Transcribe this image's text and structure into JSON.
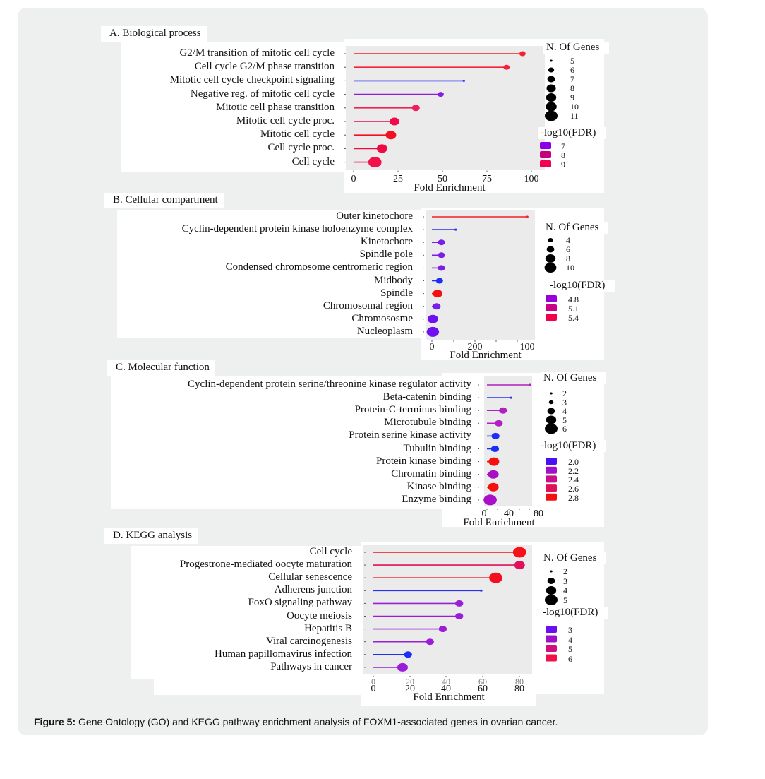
{
  "caption": {
    "label": "Figure 5:",
    "text": " Gene Ontology (GO) and KEGG pathway enrichment analysis of FOXM1-associated genes in ovarian cancer."
  },
  "chart_data": [
    {
      "type": "lollipop",
      "title": "A. Biological process",
      "xlabel": "Fold Enrichment",
      "xlim": [
        0,
        100
      ],
      "xticks": [
        "0",
        "25",
        "50",
        "75",
        "100"
      ],
      "size_legend_title": "N. Of Genes",
      "size_legend": [
        "5",
        "6",
        "7",
        "8",
        "9",
        "10",
        "11"
      ],
      "color_legend_title": "-log10(FDR)",
      "color_legend": [
        {
          "label": "7",
          "color": "#8a00e6"
        },
        {
          "label": "8",
          "color": "#c4007f"
        },
        {
          "label": "9",
          "color": "#f0004d"
        }
      ],
      "categories": [
        "G2/M transition of mitotic cell cycle",
        "Cell cycle G2/M phase transition",
        "Mitotic cell cycle checkpoint signaling",
        "Negative reg. of mitotic cell cycle",
        "Mitotic cell phase transition",
        "Mitotic cell cycle proc.",
        "Mitotic cell cycle",
        "Cell cycle proc.",
        "Cell cycle"
      ],
      "fold_enrichment": [
        95,
        86,
        62,
        49,
        35,
        23,
        21,
        16,
        12
      ],
      "n_genes": [
        6,
        6,
        5,
        6,
        7,
        8,
        9,
        9,
        11
      ],
      "colors": [
        "#f5202a",
        "#f5203a",
        "#2a2ef0",
        "#8a1ee0",
        "#f0205a",
        "#f00a4a",
        "#f5101f",
        "#f00a45",
        "#f0104a"
      ]
    },
    {
      "type": "lollipop",
      "title": "B. Cellular compartment",
      "xlabel": "Fold Enrichment",
      "xticks": [
        "0",
        "200",
        "100"
      ],
      "size_legend_title": "N. Of Genes",
      "size_legend": [
        "4",
        "6",
        "8",
        "10"
      ],
      "color_legend_title": "-log10(FDR)",
      "color_legend": [
        {
          "label": "4.8",
          "color": "#9a00d8"
        },
        {
          "label": "5.1",
          "color": "#c8008a"
        },
        {
          "label": "5.4",
          "color": "#f0004d"
        }
      ],
      "categories": [
        "Outer kinetochore",
        "Cyclin-dependent protein kinase holoenzyme complex",
        "Kinetochore",
        "Spindle pole",
        "Condensed chromosome centromeric region",
        "Midbody",
        "Spindle",
        "Chromosomal region",
        "Chromososme",
        "Nucleoplasm"
      ],
      "fold_enrichment": [
        100,
        25,
        10,
        10,
        10,
        8,
        6,
        5,
        1,
        1
      ],
      "n_genes": [
        3,
        3,
        5,
        5,
        5,
        5,
        7,
        6,
        8,
        10
      ],
      "colors": [
        "#f5202a",
        "#2a2ef0",
        "#7a1ee8",
        "#7a1ee8",
        "#7a1ee8",
        "#1e2ef5",
        "#f51010",
        "#7a1ee8",
        "#7010f0",
        "#7010f0"
      ]
    },
    {
      "type": "lollipop",
      "title": "C. Molecular function",
      "xlabel": "Fold Enrichment",
      "xlim": [
        0,
        80
      ],
      "xticks": [
        "0",
        "40",
        "80"
      ],
      "size_legend_title": "N. Of Genes",
      "size_legend": [
        "2",
        "3",
        "4",
        "5",
        "6"
      ],
      "color_legend_title": "-log10(FDR)",
      "color_legend": [
        {
          "label": "2.0",
          "color": "#4a10f5"
        },
        {
          "label": "2.2",
          "color": "#a010c8"
        },
        {
          "label": "2.4",
          "color": "#c8108a"
        },
        {
          "label": "2.6",
          "color": "#e0105a"
        },
        {
          "label": "2.8",
          "color": "#f51010"
        }
      ],
      "categories": [
        "Cyclin-dependent protein serine/threonine kinase regulator activity",
        "Beta-catenin binding",
        "Protein-C-terminus binding",
        "Microtubule binding",
        "Protein serine kinase activity",
        "Tubulin binding",
        "Protein kinase binding",
        "Chromatin binding",
        "Kinase binding",
        "Enzyme binding"
      ],
      "fold_enrichment": [
        80,
        45,
        30,
        22,
        16,
        15,
        13,
        12,
        12,
        6
      ],
      "n_genes": [
        2,
        2,
        4,
        4,
        4,
        4,
        5,
        5,
        5,
        6
      ],
      "colors": [
        "#b020c0",
        "#2a2ef0",
        "#b020c0",
        "#b020c0",
        "#1e2ef5",
        "#1e2ef5",
        "#f51010",
        "#a810c8",
        "#f51010",
        "#a810c8"
      ]
    },
    {
      "type": "lollipop",
      "title": "D. KEGG analysis",
      "xlabel": "Fold Enrichment",
      "xlim": [
        0,
        80
      ],
      "xticks": [
        "0",
        "20",
        "40",
        "60",
        "80"
      ],
      "size_legend_title": "N. Of Genes",
      "size_legend": [
        "2",
        "3",
        "4",
        "5"
      ],
      "color_legend_title": "-log10(FDR)",
      "color_legend": [
        {
          "label": "3",
          "color": "#6a10f0"
        },
        {
          "label": "4",
          "color": "#a010c8"
        },
        {
          "label": "5",
          "color": "#d0107a"
        },
        {
          "label": "6",
          "color": "#f0104a"
        }
      ],
      "categories": [
        "Cell cycle",
        "Progestrone-mediated oocyte maturation",
        "Cellular senescence",
        "Adherens junction",
        "FoxO signaling pathway",
        "Oocyte meiosis",
        "Hepatitis B",
        "Viral carcinogenesis",
        "Human papillomavirus infection",
        "Pathways in cancer"
      ],
      "fold_enrichment": [
        82,
        81,
        67,
        59,
        47,
        47,
        38,
        31,
        19,
        16
      ],
      "n_genes": [
        5,
        4,
        5,
        2,
        3,
        3,
        3,
        3,
        3,
        4
      ],
      "colors": [
        "#f5101a",
        "#e0105a",
        "#f51020",
        "#2a2ef0",
        "#9a1ed8",
        "#9a1ed8",
        "#9a1ed8",
        "#9a1ed8",
        "#1e2ef5",
        "#9a1ed8"
      ]
    }
  ]
}
